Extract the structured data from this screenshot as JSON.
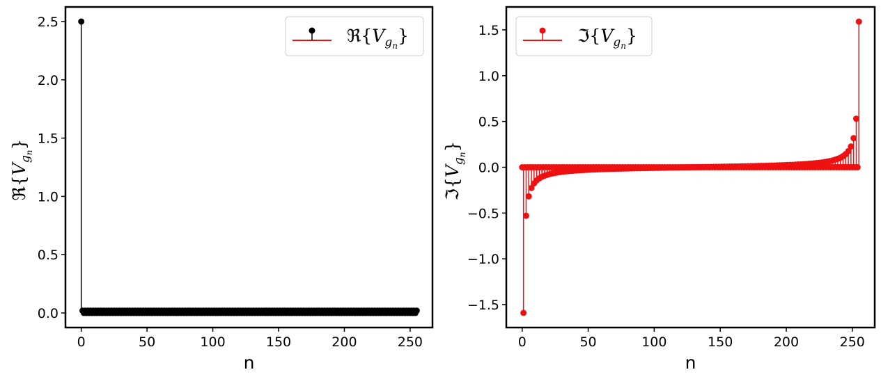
{
  "chart_data": [
    {
      "type": "stem",
      "xlabel": "n",
      "ylabel": {
        "prefix": "ℜ{",
        "var": "V",
        "sub": "g",
        "subsub": "n",
        "suffix": "}"
      },
      "legend": {
        "placement": "upper-right",
        "entries": [
          {
            "prefix": "ℜ{",
            "var": "V",
            "sub": "g",
            "subsub": "n",
            "suffix": "}"
          }
        ]
      },
      "xlim": [
        -12,
        267
      ],
      "ylim": [
        -0.125,
        2.625
      ],
      "xticks": [
        0,
        50,
        100,
        150,
        200,
        250
      ],
      "yticks": [
        0.0,
        0.5,
        1.0,
        1.5,
        2.0,
        2.5
      ],
      "ytick_labels": [
        "0.0",
        "0.5",
        "1.0",
        "1.5",
        "2.0",
        "2.5"
      ],
      "xtick_labels": [
        "0",
        "50",
        "100",
        "150",
        "200",
        "250"
      ],
      "series": [
        {
          "color": "#000000",
          "baseline_color": "#ee1111",
          "n_points": 256,
          "first_value": 2.5,
          "rest_value_odd": 0.02,
          "rest_value_even": 0.0,
          "note_values": "x[0]=2.5; odd n ≈ 0.02; even n ≈ 0.0"
        }
      ]
    },
    {
      "type": "stem",
      "xlabel": "n",
      "ylabel": {
        "prefix": "ℑ{",
        "var": "V",
        "sub": "g",
        "subsub": "n",
        "suffix": "}"
      },
      "legend": {
        "placement": "upper-left",
        "entries": [
          {
            "prefix": "ℑ{",
            "var": "V",
            "sub": "g",
            "subsub": "n",
            "suffix": "}"
          }
        ]
      },
      "xlim": [
        -12,
        267
      ],
      "ylim": [
        -1.75,
        1.75
      ],
      "xticks": [
        0,
        50,
        100,
        150,
        200,
        250
      ],
      "yticks": [
        -1.5,
        -1.0,
        -0.5,
        0.0,
        0.5,
        1.0,
        1.5
      ],
      "ytick_labels": [
        "−1.5",
        "−1.0",
        "−0.5",
        "0.0",
        "0.5",
        "1.0",
        "1.5"
      ],
      "xtick_labels": [
        "0",
        "50",
        "100",
        "150",
        "200",
        "250"
      ],
      "series": [
        {
          "color": "#ee1111",
          "baseline_color": "#ee1111",
          "n_points": 256,
          "model": "odd n: -1.591*cot(pi*n/256)/cot(pi/256)*... ≈ -(2.5/pi)*cot(pi*n/256)*(2/256)*... ; even n: 0",
          "sample_values": {
            "0": 0.0,
            "1": -1.59,
            "3": -0.53,
            "5": -0.32,
            "251": 0.32,
            "253": 0.53,
            "255": 1.59
          }
        }
      ]
    }
  ]
}
